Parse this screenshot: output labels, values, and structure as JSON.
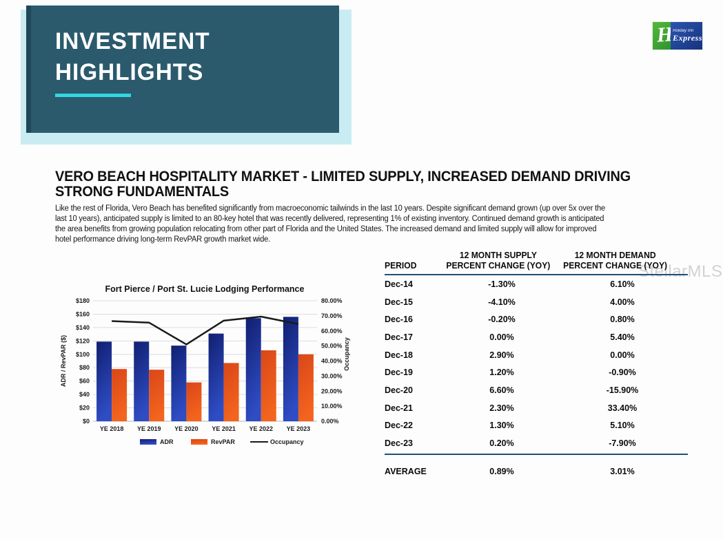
{
  "banner": {
    "title_lines": [
      "INVESTMENT",
      "HIGHLIGHTS"
    ]
  },
  "logo": {
    "monogram": "H",
    "brand_line1": "Holiday Inn",
    "brand_line2": "Express"
  },
  "watermark": "StellarMLS",
  "section": {
    "heading": "VERO BEACH HOSPITALITY MARKET - LIMITED SUPPLY, INCREASED DEMAND DRIVING STRONG FUNDAMENTALS",
    "body_lines": [
      "Like the rest of Florida, Vero Beach has benefited significantly from macroeconomic tailwinds in the last 10 years.  Despite significant demand grown (up over 5x over the",
      "last 10 years), anticipated supply is limited to an 80-key hotel that was recently delivered, representing 1% of existing inventory.  Continued demand growth is anticipated",
      "the area benefits from growing population relocating from other part of Florida and the United States.   The increased demand and limited supply will allow for improved",
      "hotel performance driving long-term RevPAR growth market wide."
    ]
  },
  "chart_data": {
    "type": "bar",
    "subtype": "combo-bar-line",
    "title": "Fort Pierce / Port St. Lucie Lodging Performance",
    "categories": [
      "YE 2018",
      "YE 2019",
      "YE 2020",
      "YE 2021",
      "YE 2022",
      "YE 2023"
    ],
    "series": [
      {
        "name": "ADR",
        "type": "bar",
        "axis": "left",
        "values": [
          119,
          119,
          113,
          131,
          154,
          156
        ],
        "color_top": "#111f70",
        "color_bottom": "#2e4cc4"
      },
      {
        "name": "RevPAR",
        "type": "bar",
        "axis": "left",
        "values": [
          78,
          77,
          58,
          87,
          106,
          100
        ],
        "color_top": "#d94718",
        "color_bottom": "#f3641e"
      },
      {
        "name": "Occupancy",
        "type": "line",
        "axis": "right",
        "values": [
          66.5,
          65.5,
          51.0,
          66.8,
          69.5,
          64.5
        ],
        "color": "#1a1a1a"
      }
    ],
    "left_axis": {
      "label": "ADR / RevPAR ($)",
      "min": 0,
      "max": 180,
      "step": 20,
      "prefix": "$"
    },
    "right_axis": {
      "label": "Occupancy",
      "min": 0,
      "max": 80,
      "step": 10,
      "suffix": "%"
    },
    "grid": true,
    "legend_position": "bottom",
    "grid_color": "#dcdcdc"
  },
  "table": {
    "headers": {
      "period": "PERIOD",
      "supply": [
        "12 MONTH SUPPLY",
        "PERCENT CHANGE (YOY)"
      ],
      "demand": [
        "12 MONTH DEMAND",
        "PERCENT CHANGE (YOY)"
      ]
    },
    "rows": [
      [
        "Dec-14",
        "-1.30%",
        "6.10%"
      ],
      [
        "Dec-15",
        "-4.10%",
        "4.00%"
      ],
      [
        "Dec-16",
        "-0.20%",
        "0.80%"
      ],
      [
        "Dec-17",
        "0.00%",
        "5.40%"
      ],
      [
        "Dec-18",
        "2.90%",
        "0.00%"
      ],
      [
        "Dec-19",
        "1.20%",
        "-0.90%"
      ],
      [
        "Dec-20",
        "6.60%",
        "-15.90%"
      ],
      [
        "Dec-21",
        "2.30%",
        "33.40%"
      ],
      [
        "Dec-22",
        "1.30%",
        "5.10%"
      ],
      [
        "Dec-23",
        "0.20%",
        "-7.90%"
      ]
    ],
    "average_row": [
      "AVERAGE",
      "0.89%",
      "3.01%"
    ]
  }
}
